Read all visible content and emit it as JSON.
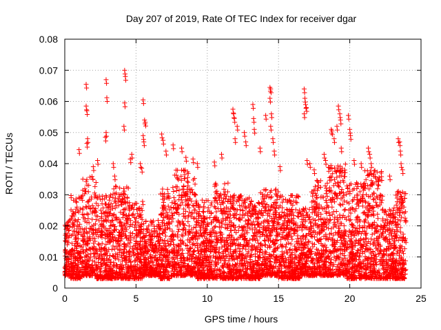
{
  "chart_data": {
    "type": "scatter",
    "title": "Day 207 of 2019, Rate Of TEC Index for receiver dgar",
    "xlabel": "GPS time / hours",
    "ylabel": "ROTI / TECUs",
    "xlim": [
      0,
      25
    ],
    "ylim": [
      0,
      0.08
    ],
    "x_ticks": [
      0,
      5,
      10,
      15,
      20,
      25
    ],
    "x_tick_labels": [
      "0",
      "5",
      "10",
      "15",
      "20",
      "25"
    ],
    "y_ticks": [
      0,
      0.01,
      0.02,
      0.03,
      0.04,
      0.05,
      0.06,
      0.07,
      0.08
    ],
    "y_tick_labels": [
      "0",
      "0.01",
      "0.02",
      "0.03",
      "0.04",
      "0.05",
      "0.06",
      "0.07",
      "0.08"
    ],
    "grid": true,
    "marker": "plus",
    "color": "#ff0000",
    "series": [
      {
        "name": "ROTI",
        "points": [
          [
            1.5,
            0.0655
          ],
          [
            2.9,
            0.067
          ],
          [
            2.95,
            0.0612
          ],
          [
            4.2,
            0.07
          ],
          [
            4.25,
            0.068
          ],
          [
            4.2,
            0.0595
          ],
          [
            4.15,
            0.052
          ],
          [
            5.5,
            0.0605
          ],
          [
            5.6,
            0.054
          ],
          [
            5.65,
            0.0533
          ],
          [
            1.5,
            0.0585
          ],
          [
            1.55,
            0.057
          ],
          [
            1.6,
            0.048
          ],
          [
            1.55,
            0.0465
          ],
          [
            1.0,
            0.0445
          ],
          [
            2.9,
            0.05
          ],
          [
            2.85,
            0.0485
          ],
          [
            2.3,
            0.041
          ],
          [
            2.0,
            0.039
          ],
          [
            3.4,
            0.04
          ],
          [
            3.5,
            0.036
          ],
          [
            4.6,
            0.0415
          ],
          [
            4.7,
            0.043
          ],
          [
            5.3,
            0.04
          ],
          [
            5.4,
            0.0385
          ],
          [
            5.5,
            0.049
          ],
          [
            5.55,
            0.047
          ],
          [
            6.8,
            0.0495
          ],
          [
            6.9,
            0.0475
          ],
          [
            7.1,
            0.044
          ],
          [
            7.6,
            0.046
          ],
          [
            8.2,
            0.045
          ],
          [
            8.5,
            0.042
          ],
          [
            9.0,
            0.0415
          ],
          [
            9.3,
            0.04
          ],
          [
            10.5,
            0.0405
          ],
          [
            11.0,
            0.043
          ],
          [
            11.8,
            0.0575
          ],
          [
            11.85,
            0.056
          ],
          [
            11.9,
            0.0545
          ],
          [
            12.1,
            0.052
          ],
          [
            11.95,
            0.048
          ],
          [
            12.6,
            0.05
          ],
          [
            12.7,
            0.047
          ],
          [
            13.2,
            0.059
          ],
          [
            13.25,
            0.0545
          ],
          [
            13.3,
            0.051
          ],
          [
            13.7,
            0.045
          ],
          [
            14.1,
            0.0555
          ],
          [
            14.4,
            0.0645
          ],
          [
            14.45,
            0.064
          ],
          [
            14.4,
            0.061
          ],
          [
            14.5,
            0.056
          ],
          [
            14.45,
            0.052
          ],
          [
            14.6,
            0.048
          ],
          [
            14.7,
            0.044
          ],
          [
            15.1,
            0.039
          ],
          [
            16.8,
            0.064
          ],
          [
            16.85,
            0.061
          ],
          [
            16.9,
            0.059
          ],
          [
            16.95,
            0.058
          ],
          [
            16.8,
            0.056
          ],
          [
            17.0,
            0.041
          ],
          [
            17.2,
            0.04
          ],
          [
            17.5,
            0.038
          ],
          [
            18.2,
            0.043
          ],
          [
            18.3,
            0.041
          ],
          [
            18.7,
            0.051
          ],
          [
            18.75,
            0.0505
          ],
          [
            18.9,
            0.048
          ],
          [
            19.2,
            0.0585
          ],
          [
            19.3,
            0.056
          ],
          [
            19.35,
            0.054
          ],
          [
            19.1,
            0.052
          ],
          [
            19.4,
            0.045
          ],
          [
            19.9,
            0.0555
          ],
          [
            20.0,
            0.051
          ],
          [
            20.05,
            0.049
          ],
          [
            20.3,
            0.041
          ],
          [
            20.8,
            0.04
          ],
          [
            21.3,
            0.045
          ],
          [
            21.4,
            0.043
          ],
          [
            21.5,
            0.04
          ],
          [
            22.2,
            0.037
          ],
          [
            22.8,
            0.036
          ],
          [
            23.4,
            0.048
          ],
          [
            23.5,
            0.047
          ],
          [
            23.55,
            0.044
          ],
          [
            23.6,
            0.04
          ],
          [
            23.7,
            0.038
          ]
        ],
        "dense_bands": [
          {
            "x_range": [
              0.0,
              0.4
            ],
            "y_range": [
              0.004,
              0.022
            ]
          },
          {
            "x_range": [
              0.4,
              1.2
            ],
            "y_range": [
              0.003,
              0.03
            ]
          },
          {
            "x_range": [
              1.2,
              2.2
            ],
            "y_range": [
              0.004,
              0.036
            ]
          },
          {
            "x_range": [
              2.2,
              3.2
            ],
            "y_range": [
              0.003,
              0.03
            ]
          },
          {
            "x_range": [
              3.2,
              4.5
            ],
            "y_range": [
              0.003,
              0.033
            ]
          },
          {
            "x_range": [
              4.5,
              5.5
            ],
            "y_range": [
              0.003,
              0.028
            ]
          },
          {
            "x_range": [
              5.5,
              6.7
            ],
            "y_range": [
              0.004,
              0.022
            ]
          },
          {
            "x_range": [
              6.7,
              7.6
            ],
            "y_range": [
              0.003,
              0.033
            ]
          },
          {
            "x_range": [
              7.6,
              9.3
            ],
            "y_range": [
              0.004,
              0.038
            ]
          },
          {
            "x_range": [
              9.3,
              10.5
            ],
            "y_range": [
              0.003,
              0.029
            ]
          },
          {
            "x_range": [
              10.5,
              11.5
            ],
            "y_range": [
              0.003,
              0.034
            ]
          },
          {
            "x_range": [
              11.5,
              12.6
            ],
            "y_range": [
              0.003,
              0.03
            ]
          },
          {
            "x_range": [
              12.6,
              13.7
            ],
            "y_range": [
              0.003,
              0.029
            ]
          },
          {
            "x_range": [
              13.7,
              15.0
            ],
            "y_range": [
              0.004,
              0.032
            ]
          },
          {
            "x_range": [
              15.0,
              16.5
            ],
            "y_range": [
              0.003,
              0.03
            ]
          },
          {
            "x_range": [
              16.5,
              17.3
            ],
            "y_range": [
              0.004,
              0.026
            ]
          },
          {
            "x_range": [
              17.3,
              18.5
            ],
            "y_range": [
              0.004,
              0.035
            ]
          },
          {
            "x_range": [
              18.5,
              19.8
            ],
            "y_range": [
              0.004,
              0.04
            ]
          },
          {
            "x_range": [
              19.8,
              21.0
            ],
            "y_range": [
              0.003,
              0.034
            ]
          },
          {
            "x_range": [
              21.0,
              22.3
            ],
            "y_range": [
              0.003,
              0.038
            ]
          },
          {
            "x_range": [
              22.3,
              23.2
            ],
            "y_range": [
              0.003,
              0.026
            ]
          },
          {
            "x_range": [
              23.2,
              23.95
            ],
            "y_range": [
              0.003,
              0.032
            ]
          }
        ]
      }
    ]
  }
}
